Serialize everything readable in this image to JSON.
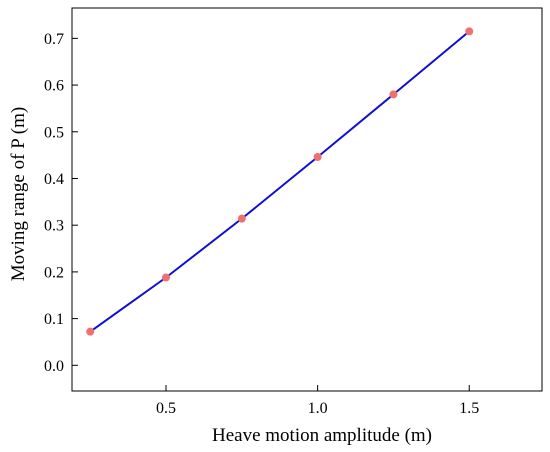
{
  "chart_data": {
    "type": "line",
    "title": "",
    "xlabel": "Heave motion amplitude (m)",
    "ylabel": "Moving range of P (m)",
    "xlim": [
      0.19,
      1.74
    ],
    "ylim": [
      -0.055,
      0.765
    ],
    "xticks": [
      0.5,
      1.0,
      1.5
    ],
    "xtick_labels": [
      "0.5",
      "1.0",
      "1.5"
    ],
    "yticks": [
      0.0,
      0.1,
      0.2,
      0.3,
      0.4,
      0.5,
      0.6,
      0.7
    ],
    "ytick_labels": [
      "0.0",
      "0.1",
      "0.2",
      "0.3",
      "0.4",
      "0.5",
      "0.6",
      "0.7"
    ],
    "grid": false,
    "legend": "none",
    "series": [
      {
        "x": [
          0.25,
          0.5,
          0.75,
          1.0,
          1.25,
          1.5
        ],
        "y": [
          0.072,
          0.188,
          0.314,
          0.446,
          0.58,
          0.715
        ],
        "line_color": "#1010d0",
        "marker_color": "#f07070"
      }
    ]
  }
}
